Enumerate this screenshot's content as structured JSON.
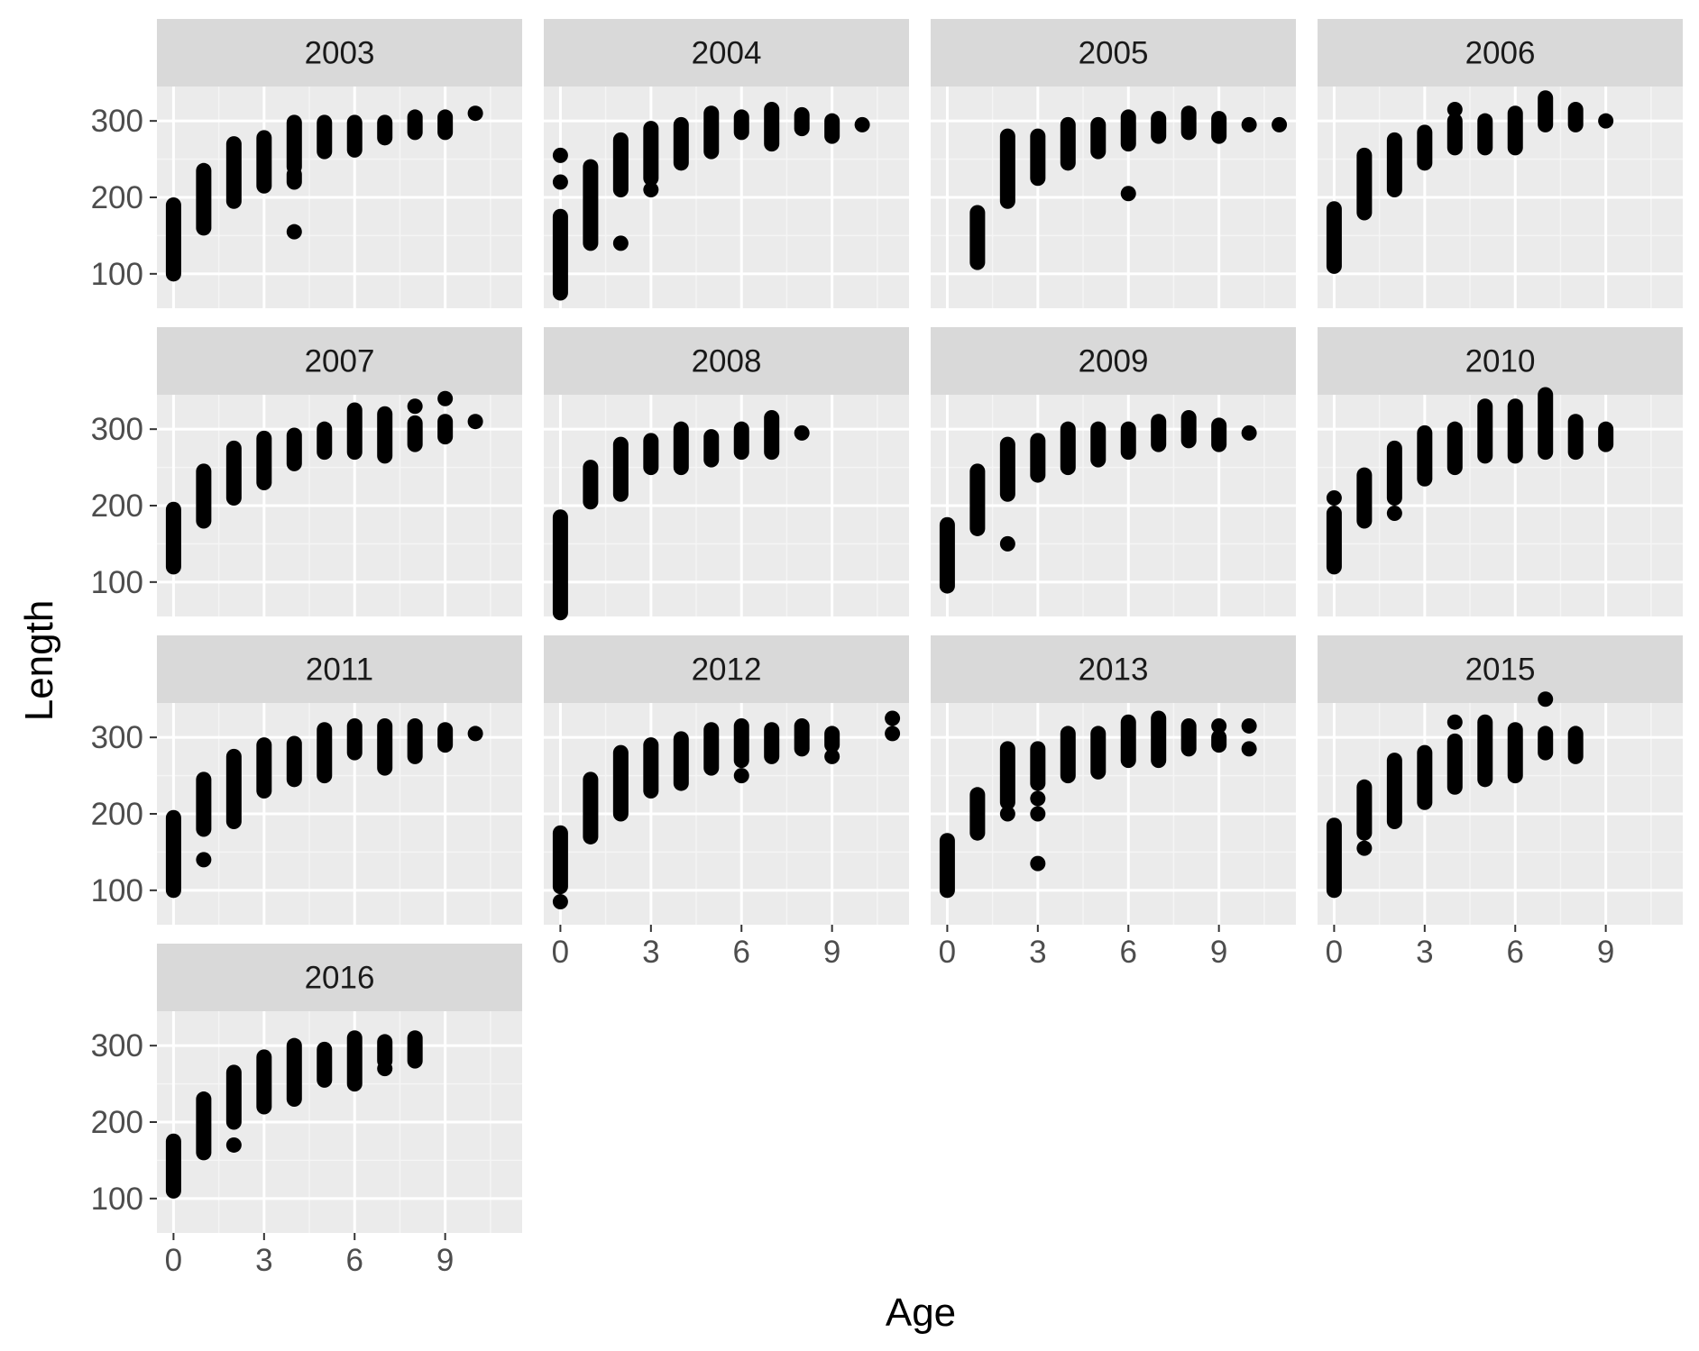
{
  "colors": {
    "panel_background": "#ebebeb",
    "strip_background": "#d9d9d9",
    "grid_major": "#ffffff",
    "grid_minor": "#f5f5f5",
    "points": "#000000",
    "tick_mark": "#333333"
  },
  "chart_data": {
    "type": "scatter",
    "layout": "facet_wrap",
    "ncol": 4,
    "xlabel": "Age",
    "ylabel": "Length",
    "xlim": [
      -0.55,
      11.55
    ],
    "ylim": [
      55,
      345
    ],
    "x_ticks": [
      0,
      3,
      6,
      9
    ],
    "y_ticks": [
      100,
      200,
      300
    ],
    "grid": true,
    "panels": [
      {
        "label": "2003",
        "points": [
          {
            "x": 0,
            "y_min": 100,
            "y_max": 190
          },
          {
            "x": 1,
            "y_min": 160,
            "y_max": 235
          },
          {
            "x": 2,
            "y_min": 195,
            "y_max": 270
          },
          {
            "x": 3,
            "y_min": 215,
            "y_max": 278
          },
          {
            "x": 4,
            "y_min": 240,
            "y_max": 298
          },
          {
            "x": 4,
            "y": 155
          },
          {
            "x": 4,
            "y_min": 220,
            "y_max": 230
          },
          {
            "x": 5,
            "y_min": 260,
            "y_max": 298
          },
          {
            "x": 6,
            "y_min": 262,
            "y_max": 298
          },
          {
            "x": 7,
            "y_min": 278,
            "y_max": 298
          },
          {
            "x": 8,
            "y_min": 285,
            "y_max": 305
          },
          {
            "x": 9,
            "y_min": 285,
            "y_max": 305
          },
          {
            "x": 10,
            "y": 310
          }
        ]
      },
      {
        "label": "2004",
        "points": [
          {
            "x": 0,
            "y_min": 75,
            "y_max": 175
          },
          {
            "x": 0,
            "y": 220
          },
          {
            "x": 0,
            "y": 255
          },
          {
            "x": 1,
            "y_min": 140,
            "y_max": 240
          },
          {
            "x": 2,
            "y": 140
          },
          {
            "x": 2,
            "y_min": 210,
            "y_max": 275
          },
          {
            "x": 3,
            "y": 210
          },
          {
            "x": 3,
            "y_min": 225,
            "y_max": 290
          },
          {
            "x": 4,
            "y_min": 245,
            "y_max": 295
          },
          {
            "x": 5,
            "y_min": 260,
            "y_max": 310
          },
          {
            "x": 6,
            "y_min": 285,
            "y_max": 305
          },
          {
            "x": 7,
            "y_min": 270,
            "y_max": 315
          },
          {
            "x": 8,
            "y_min": 290,
            "y_max": 308
          },
          {
            "x": 9,
            "y_min": 280,
            "y_max": 300
          },
          {
            "x": 10,
            "y": 295
          }
        ]
      },
      {
        "label": "2005",
        "points": [
          {
            "x": 1,
            "y_min": 115,
            "y_max": 180
          },
          {
            "x": 2,
            "y_min": 195,
            "y_max": 280
          },
          {
            "x": 3,
            "y_min": 225,
            "y_max": 280
          },
          {
            "x": 4,
            "y_min": 245,
            "y_max": 295
          },
          {
            "x": 5,
            "y_min": 260,
            "y_max": 295
          },
          {
            "x": 6,
            "y": 205
          },
          {
            "x": 6,
            "y_min": 270,
            "y_max": 305
          },
          {
            "x": 7,
            "y_min": 280,
            "y_max": 303
          },
          {
            "x": 8,
            "y_min": 285,
            "y_max": 310
          },
          {
            "x": 9,
            "y_min": 280,
            "y_max": 303
          },
          {
            "x": 10,
            "y": 295
          },
          {
            "x": 11,
            "y": 295
          }
        ]
      },
      {
        "label": "2006",
        "points": [
          {
            "x": 0,
            "y_min": 110,
            "y_max": 185
          },
          {
            "x": 1,
            "y_min": 180,
            "y_max": 255
          },
          {
            "x": 2,
            "y_min": 210,
            "y_max": 275
          },
          {
            "x": 3,
            "y_min": 245,
            "y_max": 285
          },
          {
            "x": 4,
            "y_min": 265,
            "y_max": 300
          },
          {
            "x": 4,
            "y": 315
          },
          {
            "x": 5,
            "y_min": 265,
            "y_max": 300
          },
          {
            "x": 6,
            "y_min": 265,
            "y_max": 310
          },
          {
            "x": 7,
            "y_min": 295,
            "y_max": 330
          },
          {
            "x": 8,
            "y_min": 295,
            "y_max": 315
          },
          {
            "x": 9,
            "y": 300
          }
        ]
      },
      {
        "label": "2007",
        "points": [
          {
            "x": 0,
            "y_min": 120,
            "y_max": 195
          },
          {
            "x": 1,
            "y_min": 180,
            "y_max": 245
          },
          {
            "x": 2,
            "y_min": 210,
            "y_max": 275
          },
          {
            "x": 3,
            "y_min": 230,
            "y_max": 288
          },
          {
            "x": 4,
            "y_min": 255,
            "y_max": 292
          },
          {
            "x": 5,
            "y_min": 270,
            "y_max": 300
          },
          {
            "x": 6,
            "y_min": 270,
            "y_max": 325
          },
          {
            "x": 7,
            "y_min": 265,
            "y_max": 320
          },
          {
            "x": 8,
            "y_min": 280,
            "y_max": 308
          },
          {
            "x": 8,
            "y": 330
          },
          {
            "x": 9,
            "y_min": 290,
            "y_max": 310
          },
          {
            "x": 9,
            "y": 340
          },
          {
            "x": 10,
            "y": 310
          }
        ]
      },
      {
        "label": "2008",
        "points": [
          {
            "x": 0,
            "y_min": 60,
            "y_max": 185
          },
          {
            "x": 1,
            "y_min": 205,
            "y_max": 250
          },
          {
            "x": 2,
            "y_min": 215,
            "y_max": 280
          },
          {
            "x": 3,
            "y_min": 250,
            "y_max": 285
          },
          {
            "x": 4,
            "y_min": 250,
            "y_max": 300
          },
          {
            "x": 5,
            "y_min": 260,
            "y_max": 290
          },
          {
            "x": 6,
            "y_min": 270,
            "y_max": 300
          },
          {
            "x": 7,
            "y_min": 270,
            "y_max": 315
          },
          {
            "x": 8,
            "y": 295
          }
        ]
      },
      {
        "label": "2009",
        "points": [
          {
            "x": 0,
            "y_min": 95,
            "y_max": 175
          },
          {
            "x": 1,
            "y_min": 170,
            "y_max": 245
          },
          {
            "x": 2,
            "y": 150
          },
          {
            "x": 2,
            "y_min": 215,
            "y_max": 280
          },
          {
            "x": 3,
            "y_min": 240,
            "y_max": 285
          },
          {
            "x": 4,
            "y_min": 250,
            "y_max": 300
          },
          {
            "x": 5,
            "y_min": 260,
            "y_max": 300
          },
          {
            "x": 6,
            "y_min": 270,
            "y_max": 300
          },
          {
            "x": 7,
            "y_min": 280,
            "y_max": 310
          },
          {
            "x": 8,
            "y_min": 285,
            "y_max": 315
          },
          {
            "x": 9,
            "y_min": 280,
            "y_max": 305
          },
          {
            "x": 10,
            "y": 295
          }
        ]
      },
      {
        "label": "2010",
        "points": [
          {
            "x": 0,
            "y_min": 120,
            "y_max": 190
          },
          {
            "x": 0,
            "y": 210
          },
          {
            "x": 1,
            "y_min": 180,
            "y_max": 240
          },
          {
            "x": 2,
            "y": 190
          },
          {
            "x": 2,
            "y_min": 210,
            "y_max": 275
          },
          {
            "x": 3,
            "y_min": 235,
            "y_max": 295
          },
          {
            "x": 4,
            "y_min": 250,
            "y_max": 300
          },
          {
            "x": 5,
            "y_min": 265,
            "y_max": 330
          },
          {
            "x": 6,
            "y_min": 265,
            "y_max": 330
          },
          {
            "x": 7,
            "y_min": 270,
            "y_max": 345
          },
          {
            "x": 8,
            "y_min": 270,
            "y_max": 310
          },
          {
            "x": 9,
            "y_min": 280,
            "y_max": 300
          }
        ]
      },
      {
        "label": "2011",
        "points": [
          {
            "x": 0,
            "y_min": 100,
            "y_max": 195
          },
          {
            "x": 1,
            "y": 140
          },
          {
            "x": 1,
            "y_min": 180,
            "y_max": 245
          },
          {
            "x": 2,
            "y_min": 190,
            "y_max": 275
          },
          {
            "x": 3,
            "y_min": 230,
            "y_max": 290
          },
          {
            "x": 4,
            "y_min": 245,
            "y_max": 292
          },
          {
            "x": 5,
            "y_min": 250,
            "y_max": 310
          },
          {
            "x": 6,
            "y_min": 280,
            "y_max": 315
          },
          {
            "x": 7,
            "y_min": 260,
            "y_max": 315
          },
          {
            "x": 8,
            "y_min": 275,
            "y_max": 315
          },
          {
            "x": 9,
            "y_min": 290,
            "y_max": 310
          },
          {
            "x": 10,
            "y": 305
          }
        ]
      },
      {
        "label": "2012",
        "points": [
          {
            "x": 0,
            "y": 85
          },
          {
            "x": 0,
            "y_min": 105,
            "y_max": 175
          },
          {
            "x": 1,
            "y_min": 170,
            "y_max": 245
          },
          {
            "x": 2,
            "y_min": 200,
            "y_max": 280
          },
          {
            "x": 3,
            "y_min": 230,
            "y_max": 290
          },
          {
            "x": 4,
            "y_min": 240,
            "y_max": 298
          },
          {
            "x": 5,
            "y_min": 260,
            "y_max": 310
          },
          {
            "x": 6,
            "y": 250
          },
          {
            "x": 6,
            "y_min": 270,
            "y_max": 315
          },
          {
            "x": 7,
            "y_min": 275,
            "y_max": 310
          },
          {
            "x": 8,
            "y_min": 285,
            "y_max": 315
          },
          {
            "x": 9,
            "y": 275
          },
          {
            "x": 9,
            "y_min": 290,
            "y_max": 305
          },
          {
            "x": 11,
            "y": 305
          },
          {
            "x": 11,
            "y": 325
          }
        ]
      },
      {
        "label": "2013",
        "points": [
          {
            "x": 0,
            "y_min": 100,
            "y_max": 165
          },
          {
            "x": 1,
            "y_min": 175,
            "y_max": 225
          },
          {
            "x": 2,
            "y": 200
          },
          {
            "x": 2,
            "y_min": 215,
            "y_max": 285
          },
          {
            "x": 3,
            "y": 135
          },
          {
            "x": 3,
            "y": 200
          },
          {
            "x": 3,
            "y": 220
          },
          {
            "x": 3,
            "y_min": 240,
            "y_max": 285
          },
          {
            "x": 4,
            "y_min": 250,
            "y_max": 305
          },
          {
            "x": 5,
            "y_min": 255,
            "y_max": 305
          },
          {
            "x": 6,
            "y_min": 270,
            "y_max": 320
          },
          {
            "x": 7,
            "y_min": 270,
            "y_max": 325
          },
          {
            "x": 8,
            "y_min": 285,
            "y_max": 315
          },
          {
            "x": 9,
            "y_min": 290,
            "y_max": 300
          },
          {
            "x": 9,
            "y": 315
          },
          {
            "x": 10,
            "y": 285
          },
          {
            "x": 10,
            "y": 315
          }
        ]
      },
      {
        "label": "2015",
        "points": [
          {
            "x": 0,
            "y_min": 100,
            "y_max": 185
          },
          {
            "x": 1,
            "y": 155
          },
          {
            "x": 1,
            "y_min": 175,
            "y_max": 235
          },
          {
            "x": 2,
            "y_min": 190,
            "y_max": 270
          },
          {
            "x": 3,
            "y_min": 215,
            "y_max": 280
          },
          {
            "x": 4,
            "y_min": 235,
            "y_max": 295
          },
          {
            "x": 4,
            "y": 320
          },
          {
            "x": 5,
            "y_min": 245,
            "y_max": 320
          },
          {
            "x": 6,
            "y_min": 250,
            "y_max": 310
          },
          {
            "x": 7,
            "y_min": 280,
            "y_max": 305
          },
          {
            "x": 7,
            "y": 350
          },
          {
            "x": 8,
            "y_min": 275,
            "y_max": 305
          }
        ]
      },
      {
        "label": "2016",
        "points": [
          {
            "x": 0,
            "y_min": 110,
            "y_max": 175
          },
          {
            "x": 1,
            "y_min": 160,
            "y_max": 230
          },
          {
            "x": 2,
            "y": 170
          },
          {
            "x": 2,
            "y_min": 200,
            "y_max": 265
          },
          {
            "x": 3,
            "y_min": 220,
            "y_max": 285
          },
          {
            "x": 4,
            "y_min": 230,
            "y_max": 300
          },
          {
            "x": 5,
            "y_min": 255,
            "y_max": 295
          },
          {
            "x": 6,
            "y_min": 250,
            "y_max": 310
          },
          {
            "x": 7,
            "y": 270
          },
          {
            "x": 7,
            "y_min": 280,
            "y_max": 305
          },
          {
            "x": 8,
            "y_min": 280,
            "y_max": 310
          }
        ]
      }
    ]
  }
}
